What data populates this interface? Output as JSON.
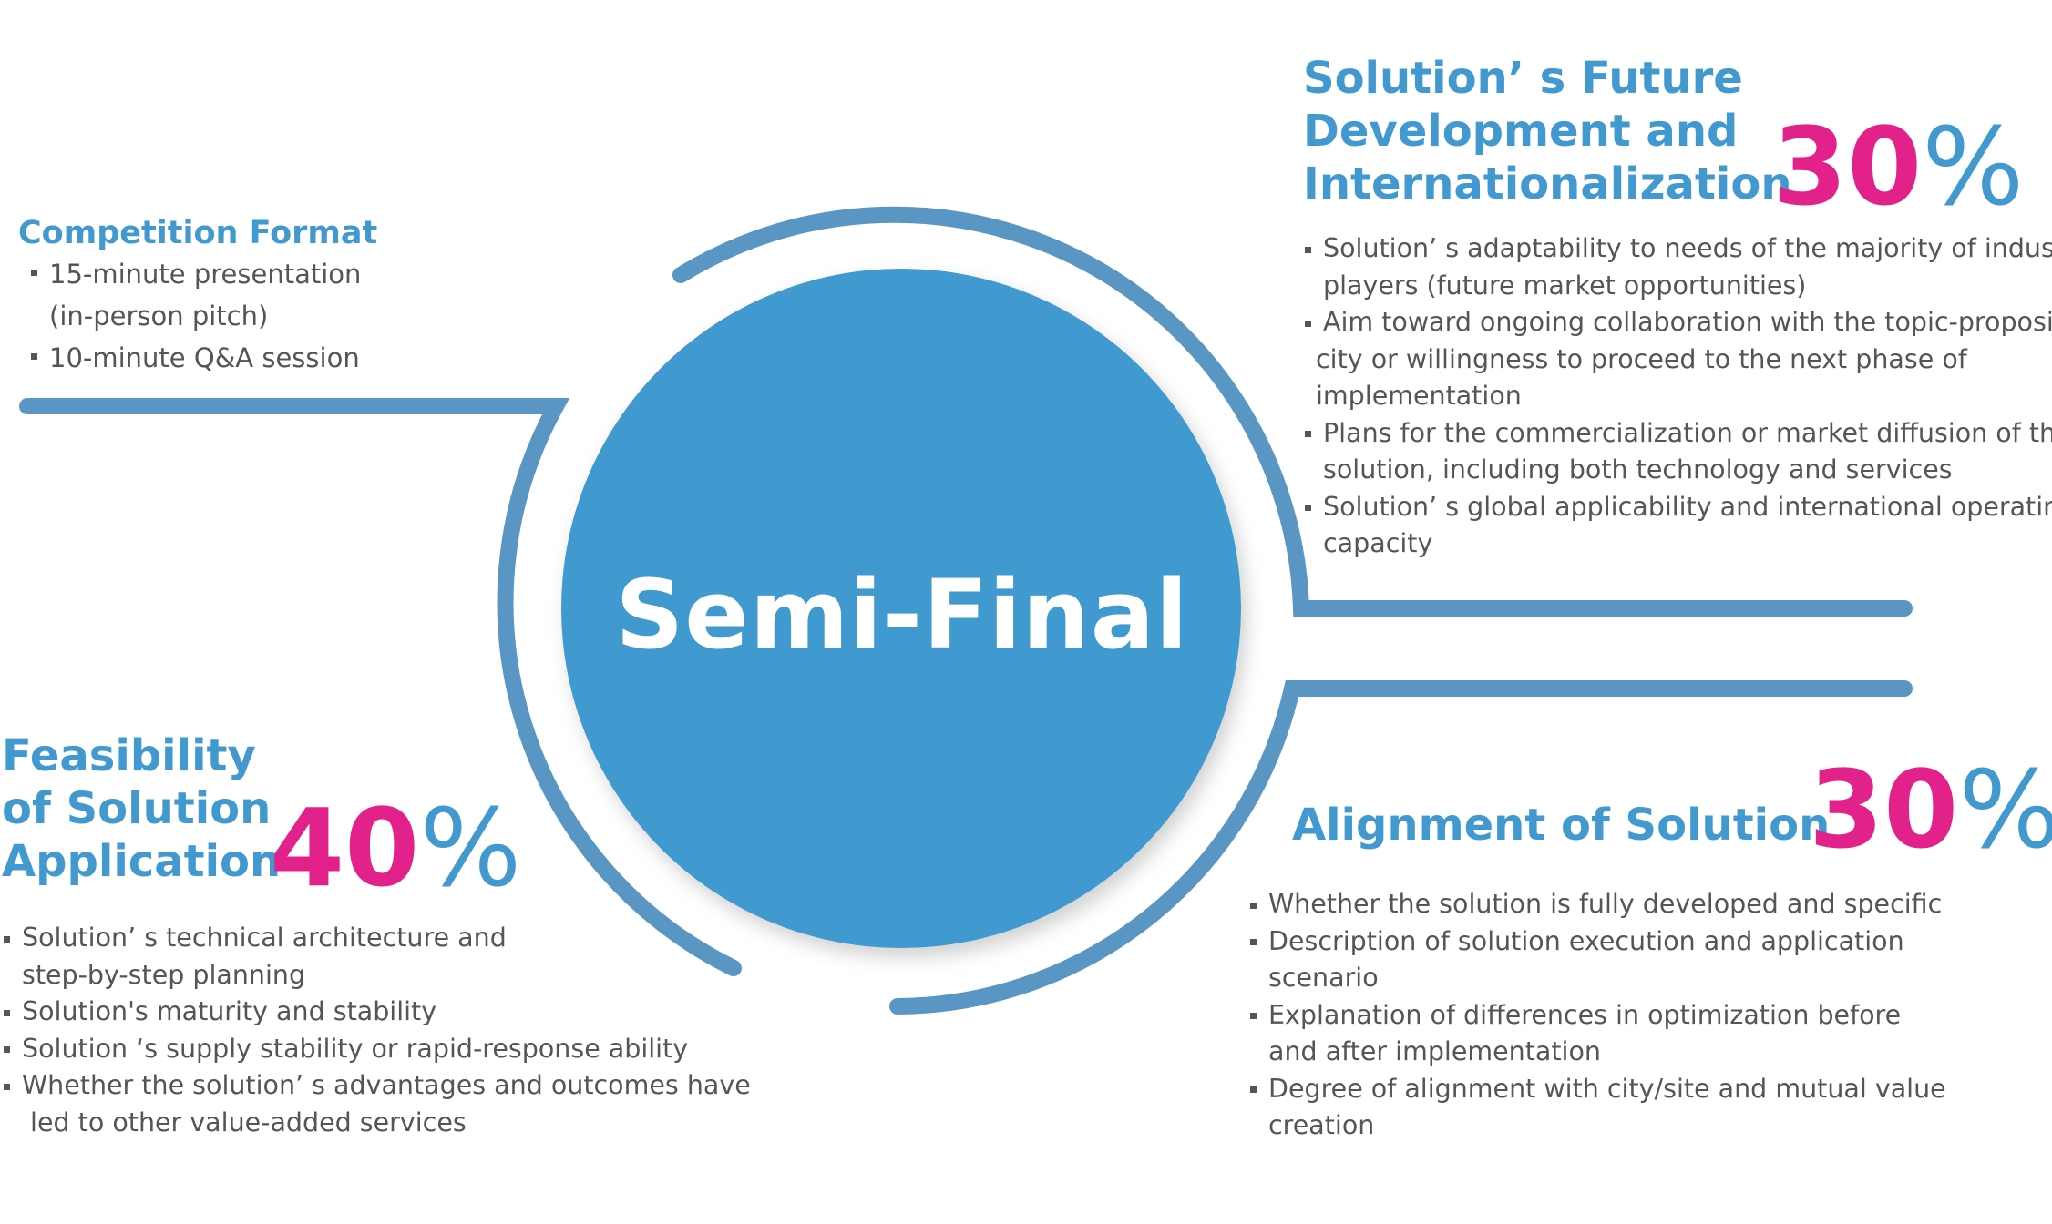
{
  "center": {
    "title": "Semi-Final"
  },
  "colors": {
    "primary_blue": "#4199cf",
    "arc_blue": "#5996c4",
    "accent_magenta": "#e2218a",
    "body_text": "#555555"
  },
  "competition_format": {
    "title": "Competition Format",
    "items": [
      {
        "lines": [
          "15-minute presentation",
          "(in-person pitch)"
        ]
      },
      {
        "lines": [
          "10-minute Q&A session"
        ]
      }
    ]
  },
  "future_development": {
    "heading_lines": [
      "Solution’ s Future",
      "Development and",
      "Internationalization"
    ],
    "percent_number": "30",
    "percent_sign": "%",
    "items": [
      {
        "lines": [
          "Solution’ s adaptability to needs of the majority of industry",
          "players (future market opportunities)"
        ]
      },
      {
        "lines": [
          "Aim toward ongoing collaboration with the topic-proposing",
          "city or willingness to proceed to the next phase of",
          "implementation"
        ]
      },
      {
        "lines": [
          "Plans for the commercialization or market diffusion of the",
          "solution, including both technology and services"
        ]
      },
      {
        "lines": [
          "Solution’ s global applicability and international operating",
          "capacity"
        ]
      }
    ]
  },
  "alignment": {
    "heading_lines": [
      "Alignment of Solution"
    ],
    "percent_number": "30",
    "percent_sign": "%",
    "items": [
      {
        "lines": [
          "Whether the solution is fully developed and specific"
        ]
      },
      {
        "lines": [
          "Description of solution execution and application",
          "scenario"
        ]
      },
      {
        "lines": [
          "Explanation of differences in optimization before",
          "and after implementation"
        ]
      },
      {
        "lines": [
          "Degree of alignment with city/site and mutual value",
          "creation"
        ]
      }
    ]
  },
  "feasibility": {
    "heading_lines": [
      "Feasibility",
      "of Solution",
      "Application"
    ],
    "percent_number": "40",
    "percent_sign": "%",
    "items": [
      {
        "lines": [
          "Solution’ s technical architecture and",
          "step-by-step planning"
        ]
      },
      {
        "lines": [
          "Solution's maturity and stability"
        ]
      },
      {
        "lines": [
          "Solution ‘s supply stability or rapid-response ability"
        ]
      },
      {
        "lines": [
          "Whether the solution’ s advantages and outcomes have",
          " led to other value-added services"
        ]
      }
    ]
  }
}
